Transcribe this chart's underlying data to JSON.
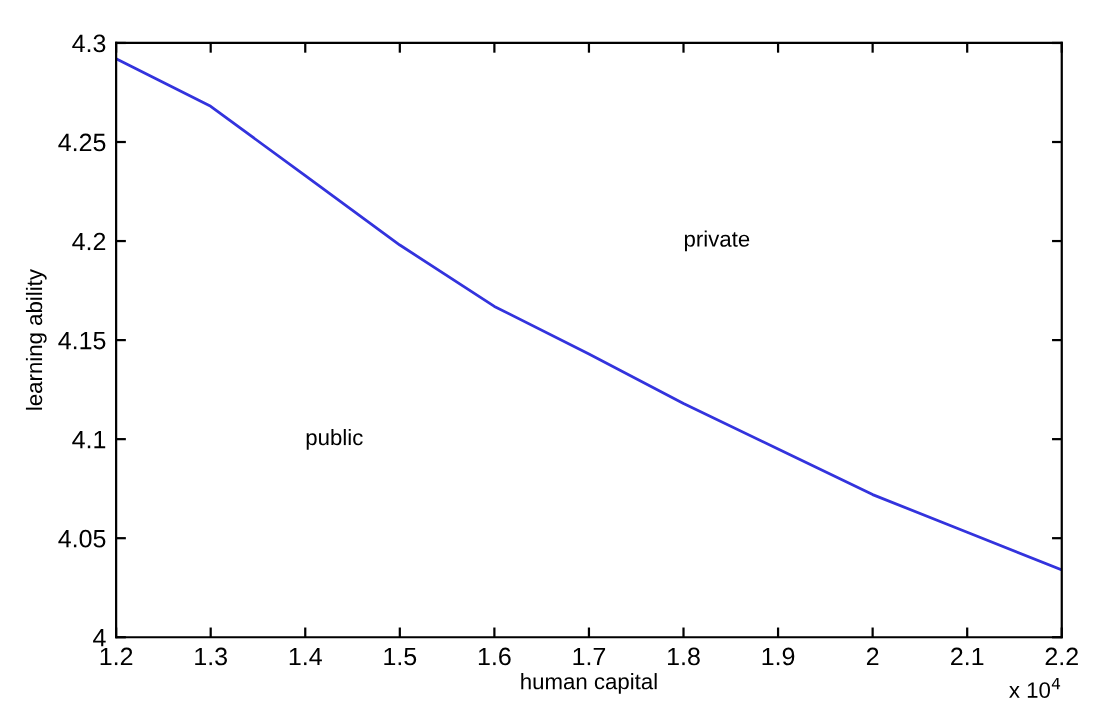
{
  "chart_data": {
    "type": "line",
    "xlabel": "human capital",
    "ylabel": "learning ability",
    "x": [
      1.2,
      1.3,
      1.4,
      1.5,
      1.6,
      1.7,
      1.8,
      1.9,
      2.0,
      2.1,
      2.2
    ],
    "series": [
      {
        "color": "#3333dd",
        "values": [
          4.292,
          4.268,
          4.233,
          4.198,
          4.167,
          4.143,
          4.118,
          4.095,
          4.072,
          4.053,
          4.034
        ]
      }
    ],
    "xlim": [
      1.2,
      2.2
    ],
    "ylim": [
      4.0,
      4.3
    ],
    "xticks": [
      1.2,
      1.3,
      1.4,
      1.5,
      1.6,
      1.7,
      1.8,
      1.9,
      2,
      2.1,
      2.2
    ],
    "yticks": [
      4,
      4.05,
      4.1,
      4.15,
      4.2,
      4.25,
      4.3
    ],
    "annotations": [
      "public",
      "private",
      "x 10$^{4}$"
    ],
    "grid": false,
    "legend": false,
    "marker": "none",
    "line_style": "solid"
  }
}
